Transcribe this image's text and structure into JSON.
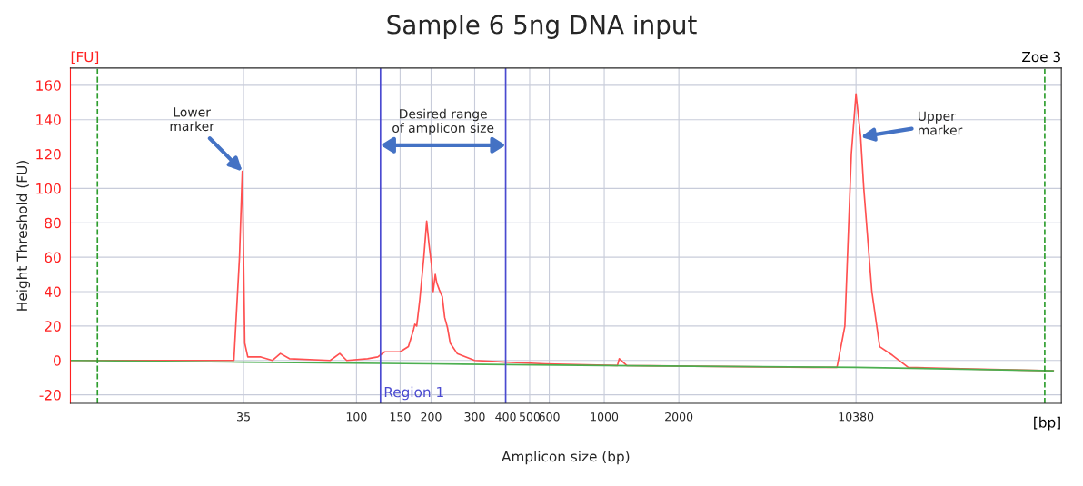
{
  "chart_data": {
    "type": "line",
    "title": "Sample 6 5ng DNA input",
    "xlabel": "Amplicon size (bp)",
    "ylabel": "Height Threshold (FU)",
    "log": "x",
    "xlim": [
      7,
      70000
    ],
    "ylim": [
      -25,
      170
    ],
    "xticks": [
      35,
      100,
      150,
      200,
      300,
      400,
      500,
      600,
      1000,
      2000,
      10380
    ],
    "yticks": [
      -20,
      0,
      20,
      40,
      60,
      80,
      100,
      120,
      140,
      160
    ],
    "grid": true,
    "legend": false,
    "marker": "none",
    "line_style": "solid",
    "series": [
      {
        "color": "#ff5050",
        "x": [
          7,
          32,
          33.7,
          34.6,
          35.4,
          36.4,
          41.1,
          45.8,
          49.3,
          53.6,
          78.3,
          85.6,
          91.3,
          110.9,
          121.9,
          130,
          150,
          162,
          170,
          172,
          175,
          180,
          187,
          192,
          196,
          201,
          204,
          208,
          211,
          216,
          222,
          227,
          233,
          239,
          255,
          300,
          400,
          578,
          1130,
          1150,
          1233,
          6970,
          8700,
          9360,
          9940,
          10380,
          10840,
          11160,
          12030,
          12940,
          14560,
          16860,
          30300,
          65000
        ],
        "values": [
          0,
          0,
          60,
          110,
          10,
          2,
          2,
          0,
          4,
          1,
          0,
          4,
          0,
          1,
          2,
          5,
          5,
          8,
          18,
          21,
          20,
          35,
          60,
          81,
          68,
          55,
          40,
          50,
          45,
          41,
          37,
          25,
          19,
          10,
          4,
          0,
          -1,
          -2,
          -3,
          1,
          -3,
          -4,
          -4,
          20,
          120,
          155,
          130,
          100,
          40,
          8,
          3,
          -4,
          -5,
          -6
        ]
      },
      {
        "color": "#4caf50",
        "x": [
          7,
          35,
          200,
          1000,
          10380,
          65000
        ],
        "values": [
          0,
          -1,
          -2,
          -3,
          -4,
          -6
        ]
      }
    ],
    "ref_lines": [
      {
        "axis": "x",
        "value": 9,
        "color": "#2e9e2e",
        "line_style": "dashed"
      },
      {
        "axis": "x",
        "value": 125,
        "label": "Region 1",
        "color": "#4a4ad0",
        "line_style": "solid"
      },
      {
        "axis": "x",
        "value": 400,
        "color": "#4a4ad0",
        "line_style": "solid"
      },
      {
        "axis": "x",
        "value": 60000,
        "color": "#2e9e2e",
        "line_style": "dashed"
      }
    ],
    "annotations": [
      {
        "text": "Lower marker",
        "x": 34.6,
        "y": 110
      },
      {
        "text": "Upper marker",
        "x": 10840,
        "y": 130
      },
      "Desired range\nof amplicon size",
      "[FU]",
      "[bp]",
      "Zoe 3"
    ]
  }
}
